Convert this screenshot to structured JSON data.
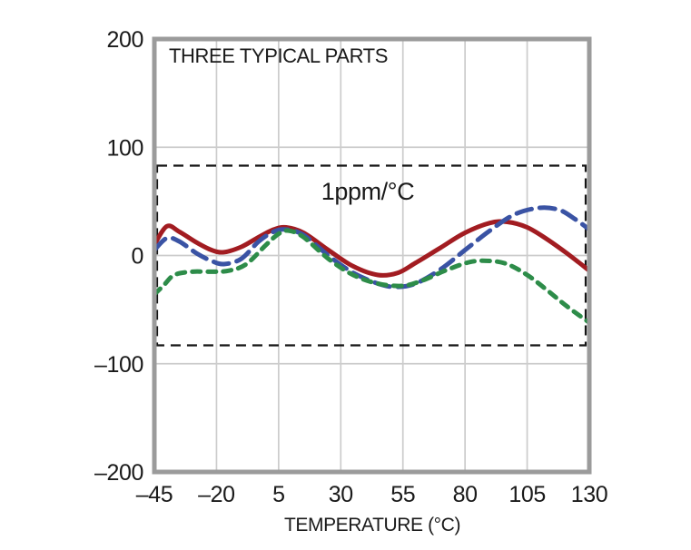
{
  "colors": {
    "grid": "#cccccc",
    "border": "#9b9b9b",
    "band_outline": "#141414",
    "text": "#1a1a1a",
    "background": "#ffffff",
    "series_red": "#a21c21",
    "series_blue": "#3a53a4",
    "series_green": "#2d8c49"
  },
  "chart_data": {
    "type": "line",
    "title": "THREE TYPICAL PARTS",
    "xlabel": "TEMPERATURE (°C)",
    "ylabel": "",
    "xlim": [
      -45,
      130
    ],
    "ylim": [
      -200,
      200
    ],
    "grid": true,
    "legend": "none",
    "x_ticks": [
      -45,
      -20,
      5,
      30,
      55,
      80,
      105,
      130
    ],
    "x_tick_labels": [
      "–45",
      "–20",
      "5",
      "30",
      "55",
      "80",
      "105",
      "130"
    ],
    "y_ticks": [
      200,
      100,
      0,
      -100,
      -200
    ],
    "y_tick_labels": [
      "200",
      "100",
      "0",
      "–100",
      "–200"
    ],
    "band": {
      "label": "1ppm/°C",
      "x_min": -45,
      "x_max": 130,
      "v_min": -83,
      "v_max": 83,
      "style": "dashed-box"
    },
    "series": [
      {
        "name": "part-1",
        "color": "#a21c21",
        "dash": "solid",
        "x": [
          -45,
          -40,
          -35,
          -28,
          -22,
          -17,
          -10,
          -3,
          3,
          8,
          15,
          25,
          35,
          45,
          53,
          60,
          70,
          80,
          90,
          97,
          105,
          113,
          121,
          130
        ],
        "y": [
          10,
          27,
          22,
          12,
          5,
          3,
          8,
          17,
          24,
          26,
          21,
          5,
          -10,
          -18,
          -16,
          -7,
          7,
          21,
          30,
          31,
          26,
          15,
          2,
          -14
        ]
      },
      {
        "name": "part-2",
        "color": "#3a53a4",
        "dash": "long-dash",
        "x": [
          -45,
          -40,
          -35,
          -28,
          -22,
          -17,
          -10,
          -3,
          3,
          8,
          15,
          25,
          35,
          45,
          52,
          60,
          70,
          80,
          90,
          100,
          110,
          118,
          124,
          130
        ],
        "y": [
          5,
          16,
          13,
          2,
          -5,
          -8,
          -3,
          13,
          22,
          24,
          19,
          0,
          -16,
          -26,
          -29,
          -26,
          -13,
          5,
          23,
          38,
          44,
          42,
          34,
          24
        ]
      },
      {
        "name": "part-3",
        "color": "#2d8c49",
        "dash": "short-dash",
        "x": [
          -45,
          -41,
          -37,
          -30,
          -22,
          -15,
          -8,
          0,
          5,
          9,
          15,
          25,
          35,
          45,
          55,
          63,
          72,
          82,
          90,
          97,
          105,
          113,
          121,
          130
        ],
        "y": [
          -36,
          -27,
          -18,
          -15,
          -15,
          -14,
          -8,
          10,
          20,
          23,
          17,
          -3,
          -18,
          -26,
          -28,
          -23,
          -14,
          -6,
          -5,
          -8,
          -18,
          -32,
          -47,
          -62
        ]
      }
    ]
  }
}
